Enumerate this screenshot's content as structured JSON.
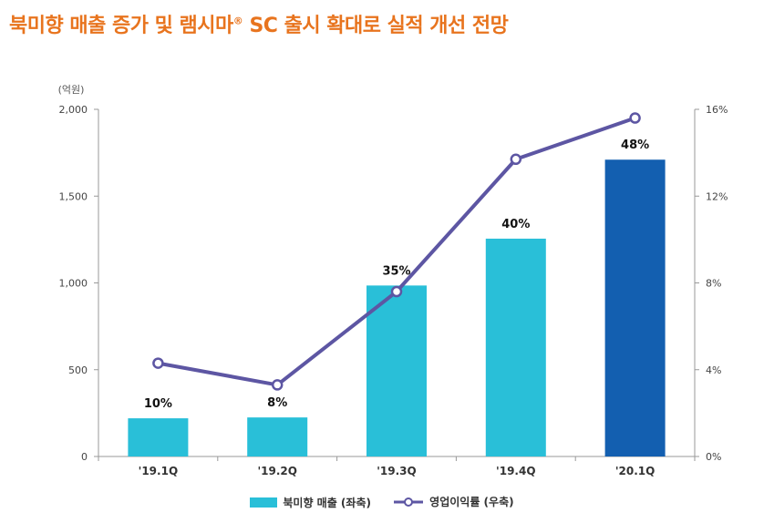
{
  "title": {
    "main_before": "북미향 매출 증가 및 램시마",
    "sup": "®",
    "main_after": " SC 출시 확대로 실적 개선 전망"
  },
  "chart_data": {
    "type": "bar",
    "title": "북미향 매출 증가 및 램시마® SC 출시 확대로 실적 개선 전망",
    "unit_label": "(억원)",
    "categories": [
      "'19.1Q",
      "'19.2Q",
      "'19.3Q",
      "'19.4Q",
      "'20.1Q"
    ],
    "series": [
      {
        "name": "북미향 매출 (좌축)",
        "kind": "bar",
        "axis": "left",
        "values": [
          220,
          225,
          985,
          1255,
          1710
        ],
        "data_labels": [
          "10%",
          "8%",
          "35%",
          "40%",
          "48%"
        ],
        "colors": [
          "#29bfd8",
          "#29bfd8",
          "#29bfd8",
          "#29bfd8",
          "#135fb0"
        ]
      },
      {
        "name": "영업이익률 (우축)",
        "kind": "line",
        "axis": "right",
        "values": [
          4.3,
          3.3,
          7.6,
          13.7,
          15.6
        ],
        "color": "#5d56a3"
      }
    ],
    "ylim_left": [
      0,
      2000
    ],
    "yticks_left": [
      0,
      500,
      1000,
      1500,
      2000
    ],
    "ytick_labels_left": [
      "0",
      "500",
      "1,000",
      "1,500",
      "2,000"
    ],
    "ylim_right": [
      0,
      16
    ],
    "yticks_right": [
      0,
      4,
      8,
      12,
      16
    ],
    "ytick_labels_right": [
      "0%",
      "4%",
      "8%",
      "12%",
      "16%"
    ],
    "grid": false,
    "legend": "bottom-center"
  },
  "legend": {
    "bar_label": "북미향 매출 (좌축)",
    "line_label": "영업이익률 (우축)"
  }
}
